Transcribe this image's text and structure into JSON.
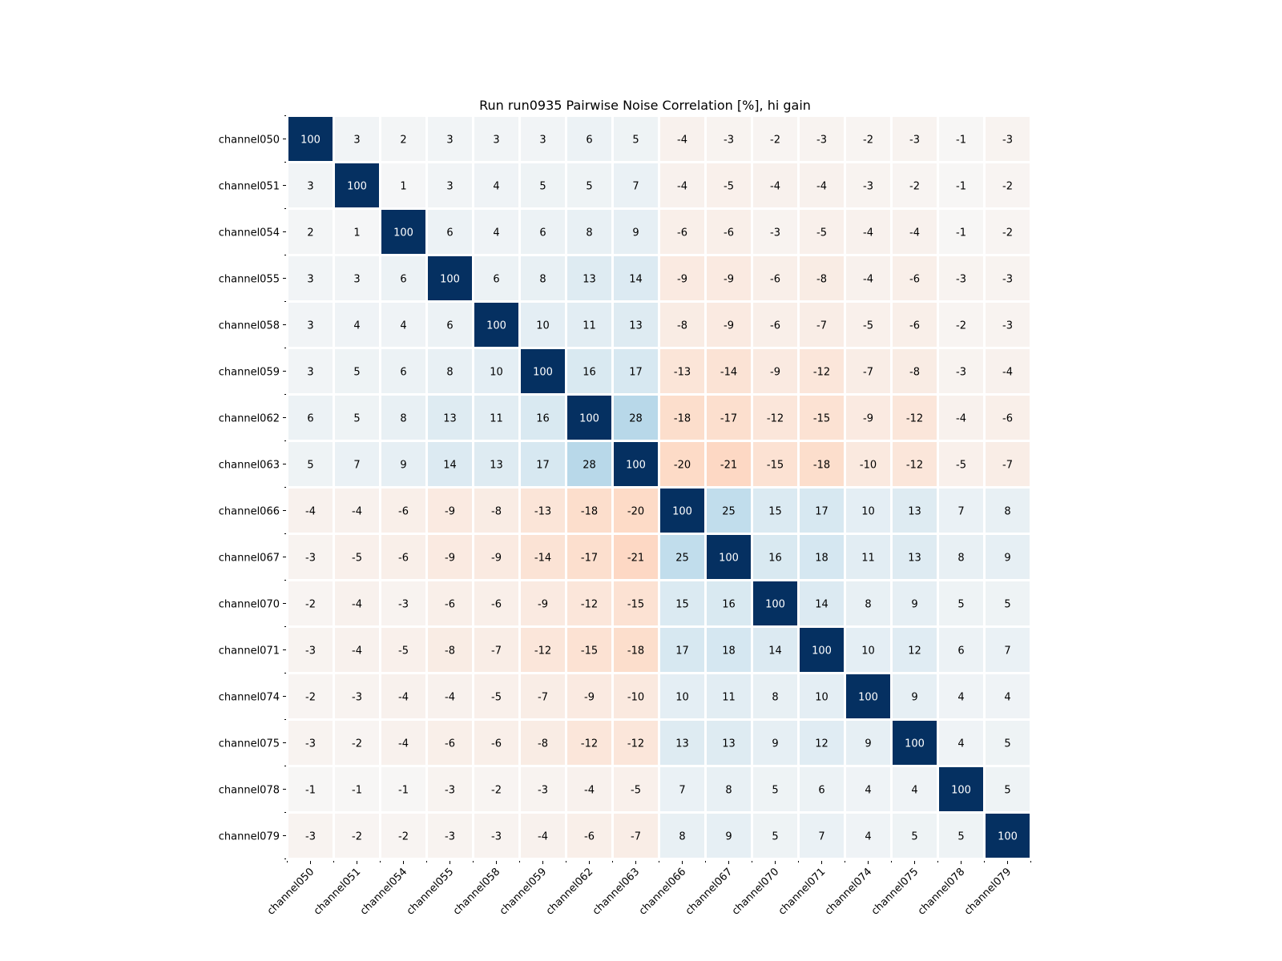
{
  "chart_data": {
    "type": "heatmap",
    "title": "Run run0935 Pairwise Noise Correlation [%], hi gain",
    "xlabel": "",
    "ylabel": "",
    "colormap": "RdBu",
    "value_range": [
      -100,
      100
    ],
    "grid": false,
    "legend": "none",
    "row_labels": [
      "channel050",
      "channel051",
      "channel054",
      "channel055",
      "channel058",
      "channel059",
      "channel062",
      "channel063",
      "channel066",
      "channel067",
      "channel070",
      "channel071",
      "channel074",
      "channel075",
      "channel078",
      "channel079"
    ],
    "col_labels": [
      "channel050",
      "channel051",
      "channel054",
      "channel055",
      "channel058",
      "channel059",
      "channel062",
      "channel063",
      "channel066",
      "channel067",
      "channel070",
      "channel071",
      "channel074",
      "channel075",
      "channel078",
      "channel079"
    ],
    "values": [
      [
        100,
        3,
        2,
        3,
        3,
        3,
        6,
        5,
        -4,
        -3,
        -2,
        -3,
        -2,
        -3,
        -1,
        -3
      ],
      [
        3,
        100,
        1,
        3,
        4,
        5,
        5,
        7,
        -4,
        -5,
        -4,
        -4,
        -3,
        -2,
        -1,
        -2
      ],
      [
        2,
        1,
        100,
        6,
        4,
        6,
        8,
        9,
        -6,
        -6,
        -3,
        -5,
        -4,
        -4,
        -1,
        -2
      ],
      [
        3,
        3,
        6,
        100,
        6,
        8,
        13,
        14,
        -9,
        -9,
        -6,
        -8,
        -4,
        -6,
        -3,
        -3
      ],
      [
        3,
        4,
        4,
        6,
        100,
        10,
        11,
        13,
        -8,
        -9,
        -6,
        -7,
        -5,
        -6,
        -2,
        -3
      ],
      [
        3,
        5,
        6,
        8,
        10,
        100,
        16,
        17,
        -13,
        -14,
        -9,
        -12,
        -7,
        -8,
        -3,
        -4
      ],
      [
        6,
        5,
        8,
        13,
        11,
        16,
        100,
        28,
        -18,
        -17,
        -12,
        -15,
        -9,
        -12,
        -4,
        -6
      ],
      [
        5,
        7,
        9,
        14,
        13,
        17,
        28,
        100,
        -20,
        -21,
        -15,
        -18,
        -10,
        -12,
        -5,
        -7
      ],
      [
        -4,
        -4,
        -6,
        -9,
        -8,
        -13,
        -18,
        -20,
        100,
        25,
        15,
        17,
        10,
        13,
        7,
        8
      ],
      [
        -3,
        -5,
        -6,
        -9,
        -9,
        -14,
        -17,
        -21,
        25,
        100,
        16,
        18,
        11,
        13,
        8,
        9
      ],
      [
        -2,
        -4,
        -3,
        -6,
        -6,
        -9,
        -12,
        -15,
        15,
        16,
        100,
        14,
        8,
        9,
        5,
        5
      ],
      [
        -3,
        -4,
        -5,
        -8,
        -7,
        -12,
        -15,
        -18,
        17,
        18,
        14,
        100,
        10,
        12,
        6,
        7
      ],
      [
        -2,
        -3,
        -4,
        -4,
        -5,
        -7,
        -9,
        -10,
        10,
        11,
        8,
        10,
        100,
        9,
        4,
        4
      ],
      [
        -3,
        -2,
        -4,
        -6,
        -6,
        -8,
        -12,
        -12,
        13,
        13,
        9,
        12,
        9,
        100,
        4,
        5
      ],
      [
        -1,
        -1,
        -1,
        -3,
        -2,
        -3,
        -4,
        -5,
        7,
        8,
        5,
        6,
        4,
        4,
        100,
        5
      ],
      [
        -3,
        -2,
        -2,
        -3,
        -3,
        -4,
        -6,
        -7,
        8,
        9,
        5,
        7,
        4,
        5,
        5,
        100
      ]
    ]
  }
}
